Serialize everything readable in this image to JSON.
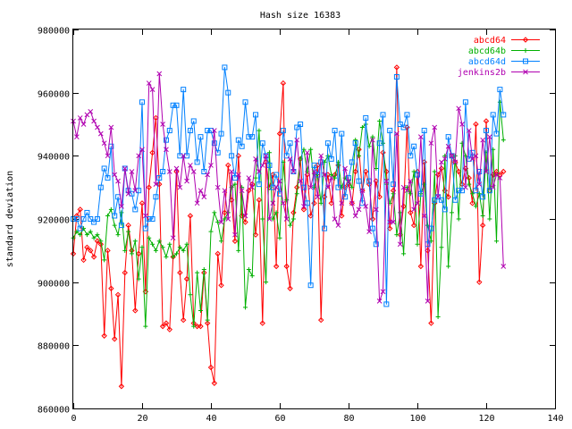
{
  "chart_data": {
    "type": "line",
    "title": "Hash size 16383",
    "xlabel": "",
    "ylabel": "standard deviation",
    "xlim": [
      0,
      140
    ],
    "ylim": [
      860000,
      980000
    ],
    "x_ticks": [
      0,
      20,
      40,
      60,
      80,
      100,
      120,
      140
    ],
    "y_ticks": [
      860000,
      880000,
      900000,
      920000,
      940000,
      960000,
      980000
    ],
    "x_tick_labels": [
      "0",
      "20",
      "40",
      "60",
      "80",
      "100",
      "120",
      "140"
    ],
    "y_tick_labels": [
      "860000",
      "880000",
      "900000",
      "920000",
      "940000",
      "960000",
      "980000"
    ],
    "grid": false,
    "legend_position": "top-right",
    "x": [
      0,
      1,
      2,
      3,
      4,
      5,
      6,
      7,
      8,
      9,
      10,
      11,
      12,
      13,
      14,
      15,
      16,
      17,
      18,
      19,
      20,
      21,
      22,
      23,
      24,
      25,
      26,
      27,
      28,
      29,
      30,
      31,
      32,
      33,
      34,
      35,
      36,
      37,
      38,
      39,
      40,
      41,
      42,
      43,
      44,
      45,
      46,
      47,
      48,
      49,
      50,
      51,
      52,
      53,
      54,
      55,
      56,
      57,
      58,
      59,
      60,
      61,
      62,
      63,
      64,
      65,
      66,
      67,
      68,
      69,
      70,
      71,
      72,
      73,
      74,
      75,
      76,
      77,
      78,
      79,
      80,
      81,
      82,
      83,
      84,
      85,
      86,
      87,
      88,
      89,
      90,
      91,
      92,
      93,
      94,
      95,
      96,
      97,
      98,
      99,
      100,
      101,
      102,
      103,
      104,
      105,
      106,
      107,
      108,
      109,
      110,
      111,
      112,
      113,
      114,
      115,
      116,
      117,
      118,
      119,
      120,
      121,
      122,
      123,
      124,
      125
    ],
    "series": [
      {
        "name": "abcd64",
        "color": "#ff0000",
        "marker": "diamond",
        "values": [
          909000,
          921000,
          923000,
          907000,
          911000,
          910000,
          908000,
          913000,
          912000,
          883000,
          910000,
          898000,
          882000,
          896000,
          867000,
          903000,
          918000,
          910000,
          891000,
          909000,
          925000,
          897000,
          930000,
          941000,
          952000,
          931000,
          886000,
          887000,
          885000,
          908000,
          935000,
          903000,
          888000,
          901000,
          921000,
          887000,
          886000,
          886000,
          903000,
          887000,
          873000,
          868000,
          909000,
          899000,
          922000,
          937000,
          926000,
          913000,
          940000,
          921000,
          919000,
          929000,
          931000,
          915000,
          926000,
          887000,
          938000,
          930000,
          934000,
          905000,
          947000,
          963000,
          905000,
          898000,
          922000,
          930000,
          939000,
          923000,
          934000,
          921000,
          925000,
          937000,
          888000,
          927000,
          934000,
          925000,
          934000,
          937000,
          921000,
          930000,
          931000,
          925000,
          935000,
          942000,
          929000,
          935000,
          931000,
          920000,
          932000,
          927000,
          941000,
          935000,
          917000,
          929000,
          968000,
          915000,
          924000,
          949000,
          922000,
          918000,
          935000,
          905000,
          938000,
          910000,
          887000,
          925000,
          934000,
          936000,
          929000,
          927000,
          940000,
          938000,
          935000,
          931000,
          936000,
          933000,
          925000,
          950000,
          900000,
          918000,
          951000,
          929000,
          934000,
          935000,
          934000,
          935000
        ]
      },
      {
        "name": "abcd64b",
        "color": "#00b000",
        "marker": "plus",
        "values": [
          914000,
          916000,
          915000,
          917000,
          915000,
          916000,
          914000,
          915000,
          913000,
          907000,
          921000,
          923000,
          918000,
          915000,
          922000,
          910000,
          916000,
          909000,
          913000,
          901000,
          911000,
          886000,
          914000,
          912000,
          910000,
          913000,
          911000,
          908000,
          912000,
          908000,
          909000,
          911000,
          910000,
          912000,
          896000,
          886000,
          903000,
          891000,
          904000,
          888000,
          916000,
          922000,
          919000,
          913000,
          920000,
          922000,
          930000,
          931000,
          910000,
          930000,
          892000,
          904000,
          902000,
          933000,
          948000,
          920000,
          900000,
          941000,
          920000,
          922000,
          914000,
          938000,
          926000,
          918000,
          920000,
          928000,
          939000,
          942000,
          935000,
          942000,
          930000,
          934000,
          925000,
          938000,
          940000,
          934000,
          933000,
          938000,
          930000,
          933000,
          932000,
          930000,
          945000,
          940000,
          949000,
          950000,
          943000,
          946000,
          936000,
          951000,
          944000,
          931000,
          925000,
          928000,
          915000,
          922000,
          909000,
          930000,
          928000,
          935000,
          912000,
          928000,
          931000,
          918000,
          913000,
          935000,
          889000,
          911000,
          940000,
          905000,
          922000,
          940000,
          920000,
          944000,
          940000,
          931000,
          928000,
          924000,
          928000,
          921000,
          941000,
          920000,
          942000,
          913000,
          957000,
          945000
        ]
      },
      {
        "name": "abcd64d",
        "color": "#0080ff",
        "marker": "square",
        "values": [
          920000,
          920000,
          917000,
          920000,
          922000,
          920000,
          919000,
          920000,
          930000,
          936000,
          933000,
          943000,
          921000,
          927000,
          918000,
          936000,
          929000,
          928000,
          923000,
          929000,
          957000,
          917000,
          920000,
          920000,
          927000,
          933000,
          935000,
          945000,
          948000,
          956000,
          956000,
          940000,
          961000,
          940000,
          948000,
          951000,
          938000,
          946000,
          935000,
          948000,
          948000,
          944000,
          941000,
          947000,
          968000,
          960000,
          940000,
          933000,
          945000,
          943000,
          957000,
          946000,
          946000,
          953000,
          931000,
          944000,
          940000,
          937000,
          930000,
          934000,
          928000,
          948000,
          940000,
          944000,
          935000,
          949000,
          950000,
          930000,
          925000,
          899000,
          937000,
          934000,
          938000,
          917000,
          944000,
          939000,
          948000,
          930000,
          947000,
          927000,
          933000,
          938000,
          944000,
          932000,
          925000,
          952000,
          932000,
          917000,
          912000,
          944000,
          953000,
          893000,
          948000,
          931000,
          965000,
          950000,
          949000,
          953000,
          940000,
          943000,
          934000,
          928000,
          948000,
          912000,
          917000,
          926000,
          927000,
          926000,
          923000,
          946000,
          940000,
          926000,
          929000,
          929000,
          957000,
          939000,
          941000,
          929000,
          935000,
          927000,
          948000,
          929000,
          953000,
          947000,
          961000,
          953000
        ]
      },
      {
        "name": "jenkins2b",
        "color": "#b000b0",
        "marker": "cross",
        "values": [
          951000,
          946000,
          952000,
          950000,
          953000,
          954000,
          951000,
          949000,
          947000,
          944000,
          940000,
          949000,
          934000,
          932000,
          924000,
          936000,
          928000,
          935000,
          929000,
          940000,
          942000,
          921000,
          963000,
          961000,
          931000,
          966000,
          950000,
          942000,
          935000,
          914000,
          936000,
          930000,
          940000,
          932000,
          937000,
          935000,
          925000,
          929000,
          927000,
          934000,
          937000,
          948000,
          930000,
          919000,
          929000,
          920000,
          935000,
          915000,
          934000,
          929000,
          921000,
          933000,
          930000,
          939000,
          935000,
          937000,
          940000,
          920000,
          925000,
          930000,
          932000,
          925000,
          920000,
          939000,
          935000,
          945000,
          932000,
          924000,
          941000,
          930000,
          935000,
          927000,
          940000,
          934000,
          930000,
          933000,
          920000,
          918000,
          925000,
          936000,
          932000,
          925000,
          921000,
          923000,
          929000,
          924000,
          916000,
          945000,
          923000,
          894000,
          897000,
          932000,
          919000,
          919000,
          947000,
          912000,
          930000,
          929000,
          932000,
          923000,
          925000,
          946000,
          921000,
          894000,
          944000,
          949000,
          927000,
          938000,
          939000,
          943000,
          940000,
          938000,
          955000,
          950000,
          930000,
          948000,
          939000,
          940000,
          931000,
          945000,
          935000,
          946000,
          930000,
          934000,
          933000,
          905000
        ]
      }
    ]
  }
}
